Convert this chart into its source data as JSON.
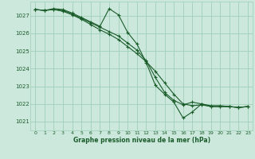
{
  "bg_color": "#cce8dc",
  "grid_color": "#9ecfb8",
  "line_color": "#1a5c2a",
  "xlabel": "Graphe pression niveau de la mer (hPa)",
  "xlim": [
    -0.5,
    23.5
  ],
  "ylim": [
    1020.5,
    1027.8
  ],
  "yticks": [
    1021,
    1022,
    1023,
    1024,
    1025,
    1026,
    1027
  ],
  "xticks": [
    0,
    1,
    2,
    3,
    4,
    5,
    6,
    7,
    8,
    9,
    10,
    11,
    12,
    13,
    14,
    15,
    16,
    17,
    18,
    19,
    20,
    21,
    22,
    23
  ],
  "series": [
    {
      "x": [
        0,
        1,
        2,
        3,
        4,
        5,
        6,
        7,
        8,
        9,
        10,
        11,
        12,
        13,
        14,
        15,
        16,
        17,
        18,
        19,
        20,
        21,
        22,
        23
      ],
      "y": [
        1027.35,
        1027.3,
        1027.4,
        1027.35,
        1027.15,
        1026.9,
        1026.65,
        1026.4,
        1027.4,
        1027.05,
        1026.05,
        1025.4,
        1024.35,
        1023.05,
        1022.55,
        1022.1,
        1021.2,
        1021.55,
        1022.0,
        1021.9,
        1021.9,
        1021.85,
        1021.8,
        1021.85
      ]
    },
    {
      "x": [
        0,
        1,
        2,
        3,
        4,
        5,
        6,
        7,
        8,
        9,
        10,
        11,
        12,
        13,
        14,
        15,
        16,
        17,
        18,
        19,
        20,
        21,
        22,
        23
      ],
      "y": [
        1027.35,
        1027.3,
        1027.35,
        1027.25,
        1027.05,
        1026.8,
        1026.5,
        1026.2,
        1025.95,
        1025.65,
        1025.25,
        1024.85,
        1024.4,
        1023.85,
        1023.2,
        1022.55,
        1022.0,
        1021.9,
        1021.95,
        1021.85,
        1021.85,
        1021.85,
        1021.8,
        1021.85
      ]
    },
    {
      "x": [
        0,
        1,
        2,
        3,
        4,
        5,
        6,
        7,
        8,
        9,
        10,
        11,
        12,
        13,
        14,
        15,
        16,
        17,
        18,
        19,
        20,
        21,
        22,
        23
      ],
      "y": [
        1027.35,
        1027.3,
        1027.35,
        1027.3,
        1027.1,
        1026.85,
        1026.6,
        1026.35,
        1026.1,
        1025.85,
        1025.45,
        1025.05,
        1024.45,
        1023.5,
        1022.65,
        1022.2,
        1021.95,
        1022.1,
        1022.0,
        1021.85,
        1021.85,
        1021.85,
        1021.8,
        1021.85
      ]
    }
  ]
}
